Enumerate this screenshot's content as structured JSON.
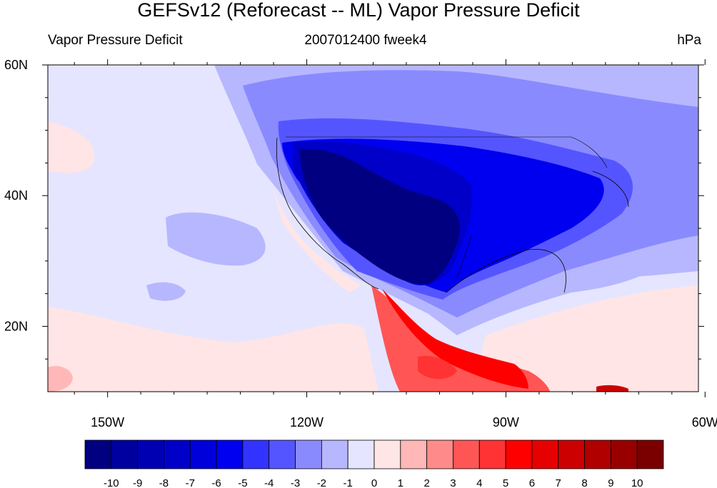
{
  "chart_data": {
    "type": "heatmap",
    "title": "GEFSv12 (Reforecast -- ML) Vapor Pressure Deficit",
    "left_subtitle": "Vapor Pressure Deficit",
    "center_subtitle": "2007012400 fweek4",
    "units": "hPa",
    "x_ticks": [
      "150W",
      "120W",
      "90W",
      "60W"
    ],
    "y_ticks": [
      "60N",
      "40N",
      "20N"
    ],
    "x_range": [
      -159,
      -61
    ],
    "y_range": [
      10,
      60
    ],
    "colorbar": {
      "labels": [
        "-10",
        "-9",
        "-8",
        "-7",
        "-6",
        "-5",
        "-4",
        "-3",
        "-2",
        "-1",
        "0",
        "1",
        "2",
        "3",
        "4",
        "5",
        "6",
        "7",
        "8",
        "9",
        "10"
      ],
      "colors": [
        "#000080",
        "#00009e",
        "#0000b3",
        "#0000c8",
        "#0000dc",
        "#0000f0",
        "#3333ff",
        "#5555ff",
        "#8a8aff",
        "#b7b7ff",
        "#e5e5ff",
        "#ffe5e5",
        "#ffb7b7",
        "#ff8a8a",
        "#ff5555",
        "#ff3333",
        "#ff0000",
        "#e60000",
        "#cc0000",
        "#b00000",
        "#980000",
        "#7a0000"
      ]
    }
  }
}
